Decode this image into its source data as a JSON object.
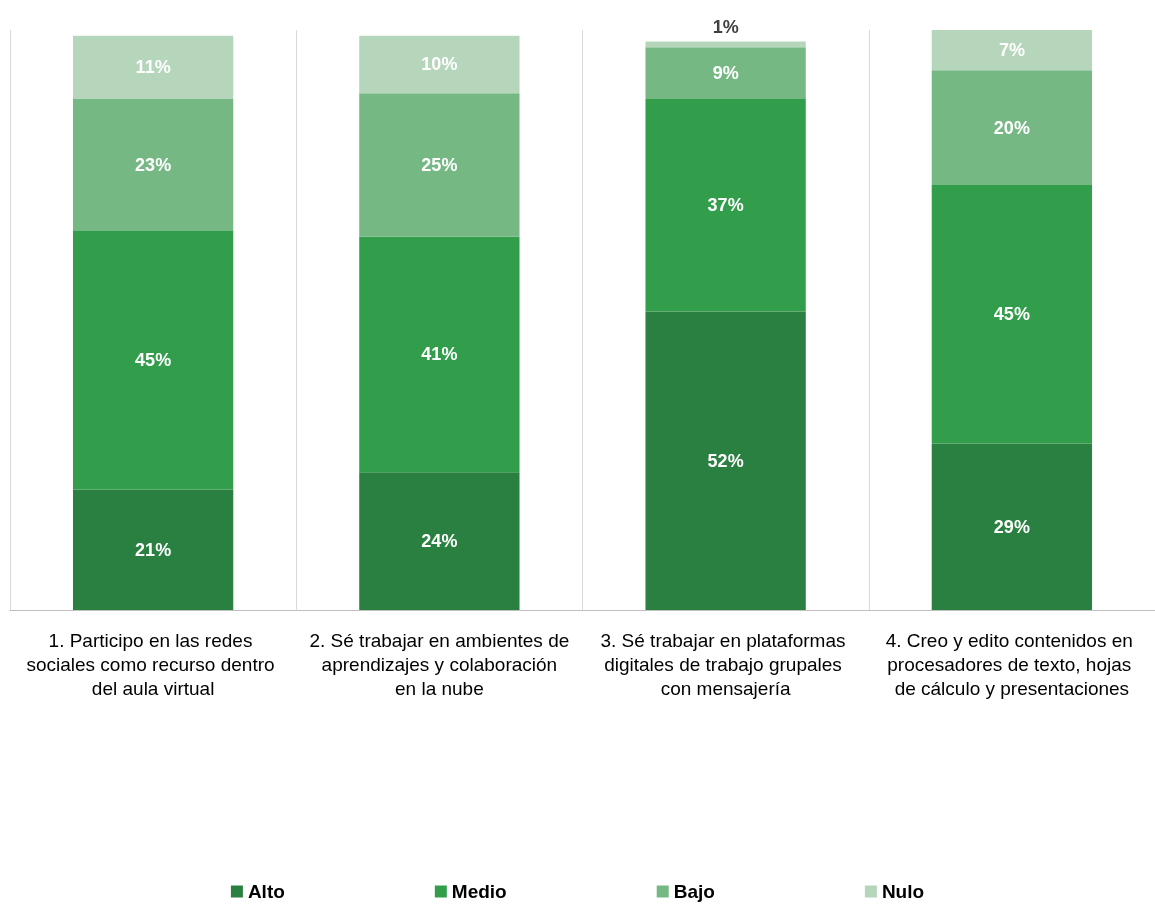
{
  "chart_data": {
    "type": "bar",
    "stacked": true,
    "grid": "x",
    "legend": "bottom",
    "categories": [
      "1. Participo en las redes sociales como recurso dentro del aula virtual",
      "2. Sé trabajar en ambientes de aprendizajes y colaboración en la nube",
      "3. Sé trabajar en plataformas digitales de trabajo grupales con mensajería",
      "4. Creo y edito contenidos en procesadores de texto, hojas de cálculo y presentaciones"
    ],
    "series": [
      {
        "name": "Alto",
        "color": "#2a8040",
        "values": [
          21,
          24,
          52,
          29
        ],
        "value_labels": [
          "21%",
          "24%",
          "52%",
          "29%"
        ]
      },
      {
        "name": "Medio",
        "color": "#329e4c",
        "values": [
          45,
          41,
          37,
          45
        ],
        "value_labels": [
          "45%",
          "41%",
          "37%",
          "45%"
        ]
      },
      {
        "name": "Bajo",
        "color": "#76b884",
        "values": [
          23,
          25,
          9,
          20
        ],
        "value_labels": [
          "23%",
          "25%",
          "9%",
          "20%"
        ]
      },
      {
        "name": "Nulo",
        "color": "#b5d6bb",
        "values": [
          11,
          10,
          1,
          7
        ],
        "value_labels": [
          "11%",
          "10%",
          "1%",
          "7%"
        ]
      }
    ]
  }
}
